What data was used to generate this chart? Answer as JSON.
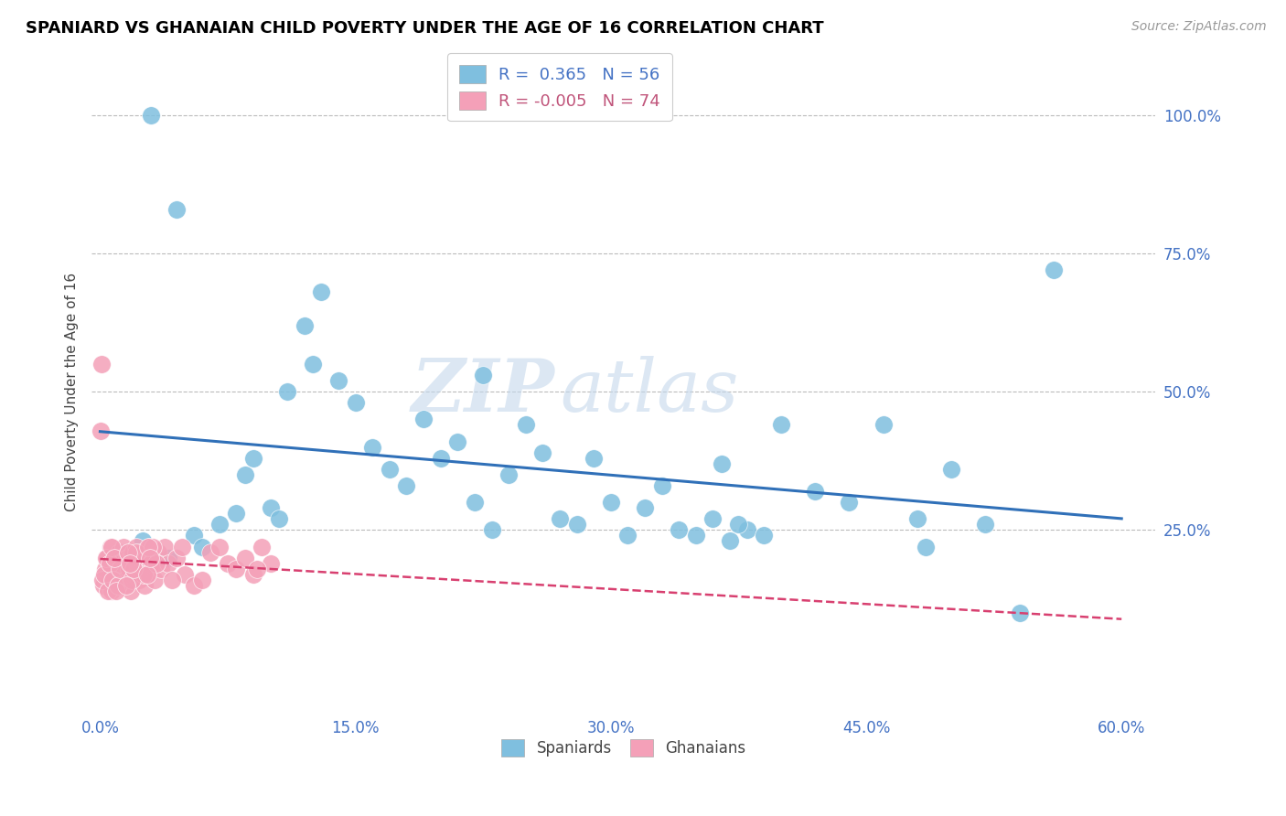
{
  "title": "SPANIARD VS GHANAIAN CHILD POVERTY UNDER THE AGE OF 16 CORRELATION CHART",
  "source": "Source: ZipAtlas.com",
  "xlabel_ticks": [
    "0.0%",
    "15.0%",
    "30.0%",
    "45.0%",
    "60.0%"
  ],
  "xlabel_vals": [
    0.0,
    15.0,
    30.0,
    45.0,
    60.0
  ],
  "ylabel_ticks": [
    "100.0%",
    "75.0%",
    "50.0%",
    "25.0%"
  ],
  "ylabel_vals": [
    100.0,
    75.0,
    50.0,
    25.0
  ],
  "ylabel_label": "Child Poverty Under the Age of 16",
  "blue_R": 0.365,
  "blue_N": 56,
  "pink_R": -0.005,
  "pink_N": 74,
  "blue_color": "#7fbfdf",
  "pink_color": "#f4a0b8",
  "blue_line_color": "#3070b8",
  "pink_line_color": "#d84070",
  "watermark_zip": "ZIP",
  "watermark_atlas": "atlas",
  "blue_scatter_x": [
    1.2,
    2.5,
    4.0,
    5.5,
    6.0,
    7.0,
    8.0,
    8.5,
    9.0,
    10.0,
    10.5,
    11.0,
    12.0,
    12.5,
    13.0,
    14.0,
    15.0,
    16.0,
    17.0,
    18.0,
    19.0,
    20.0,
    21.0,
    22.0,
    23.0,
    24.0,
    25.0,
    26.0,
    27.0,
    28.0,
    29.0,
    30.0,
    31.0,
    32.0,
    33.0,
    34.0,
    35.0,
    36.0,
    37.0,
    38.0,
    39.0,
    40.0,
    42.0,
    44.0,
    46.0,
    48.0,
    50.0,
    52.0,
    54.0,
    56.0,
    3.0,
    4.5,
    22.5,
    36.5,
    37.5,
    48.5
  ],
  "blue_scatter_y": [
    21.0,
    23.0,
    20.0,
    24.0,
    22.0,
    26.0,
    28.0,
    35.0,
    38.0,
    29.0,
    27.0,
    50.0,
    62.0,
    55.0,
    68.0,
    52.0,
    48.0,
    40.0,
    36.0,
    33.0,
    45.0,
    38.0,
    41.0,
    30.0,
    25.0,
    35.0,
    44.0,
    39.0,
    27.0,
    26.0,
    38.0,
    30.0,
    24.0,
    29.0,
    33.0,
    25.0,
    24.0,
    27.0,
    23.0,
    25.0,
    24.0,
    44.0,
    32.0,
    30.0,
    44.0,
    27.0,
    36.0,
    26.0,
    10.0,
    72.0,
    100.0,
    83.0,
    53.0,
    37.0,
    26.0,
    22.0
  ],
  "pink_scatter_x": [
    0.2,
    0.3,
    0.4,
    0.5,
    0.6,
    0.7,
    0.8,
    0.9,
    1.0,
    1.1,
    1.2,
    1.3,
    1.4,
    1.5,
    1.6,
    1.7,
    1.8,
    1.9,
    2.0,
    2.1,
    2.2,
    2.3,
    2.4,
    2.5,
    2.6,
    2.7,
    2.8,
    2.9,
    3.0,
    3.2,
    3.4,
    3.6,
    3.8,
    4.0,
    4.5,
    5.0,
    5.5,
    6.0,
    6.5,
    7.0,
    7.5,
    8.0,
    8.5,
    9.0,
    9.5,
    10.0,
    0.15,
    0.25,
    0.35,
    0.45,
    0.55,
    0.65,
    0.75,
    1.05,
    1.15,
    2.15,
    2.55,
    3.1,
    3.3,
    0.85,
    0.95,
    1.85,
    1.95,
    1.55,
    1.65,
    1.75,
    2.75,
    2.85,
    2.95,
    0.1,
    0.05,
    4.2,
    4.8,
    9.2
  ],
  "pink_scatter_y": [
    15.0,
    18.0,
    20.0,
    16.0,
    22.0,
    14.0,
    18.0,
    20.0,
    17.0,
    21.0,
    19.0,
    15.0,
    22.0,
    16.0,
    20.0,
    18.0,
    14.0,
    21.0,
    17.0,
    22.0,
    19.0,
    16.0,
    21.0,
    18.0,
    15.0,
    20.0,
    17.0,
    22.0,
    19.0,
    16.0,
    21.0,
    18.0,
    22.0,
    19.0,
    20.0,
    17.0,
    15.0,
    16.0,
    21.0,
    22.0,
    19.0,
    18.0,
    20.0,
    17.0,
    22.0,
    19.0,
    16.0,
    17.0,
    20.0,
    14.0,
    19.0,
    22.0,
    16.0,
    15.0,
    18.0,
    21.0,
    17.0,
    22.0,
    19.0,
    20.0,
    14.0,
    16.0,
    18.0,
    15.0,
    21.0,
    19.0,
    17.0,
    22.0,
    20.0,
    55.0,
    43.0,
    16.0,
    22.0,
    18.0
  ],
  "xlim": [
    -0.5,
    62.0
  ],
  "ylim": [
    -8.0,
    108.0
  ]
}
